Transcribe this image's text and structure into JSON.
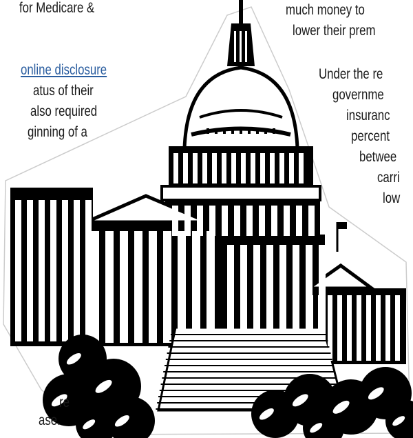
{
  "left_column": {
    "lines": [
      "for Medicare &",
      "atus of their",
      "also required",
      "ginning of a"
    ],
    "link": "online disclosure"
  },
  "right_column": {
    "lines": [
      "much money to",
      "lower their prem",
      "Under the re",
      "governme",
      "insuranc",
      "percent",
      "betwee",
      "carri",
      "low"
    ]
  },
  "bottom_left": {
    "lines": [
      "re",
      "ase."
    ]
  }
}
